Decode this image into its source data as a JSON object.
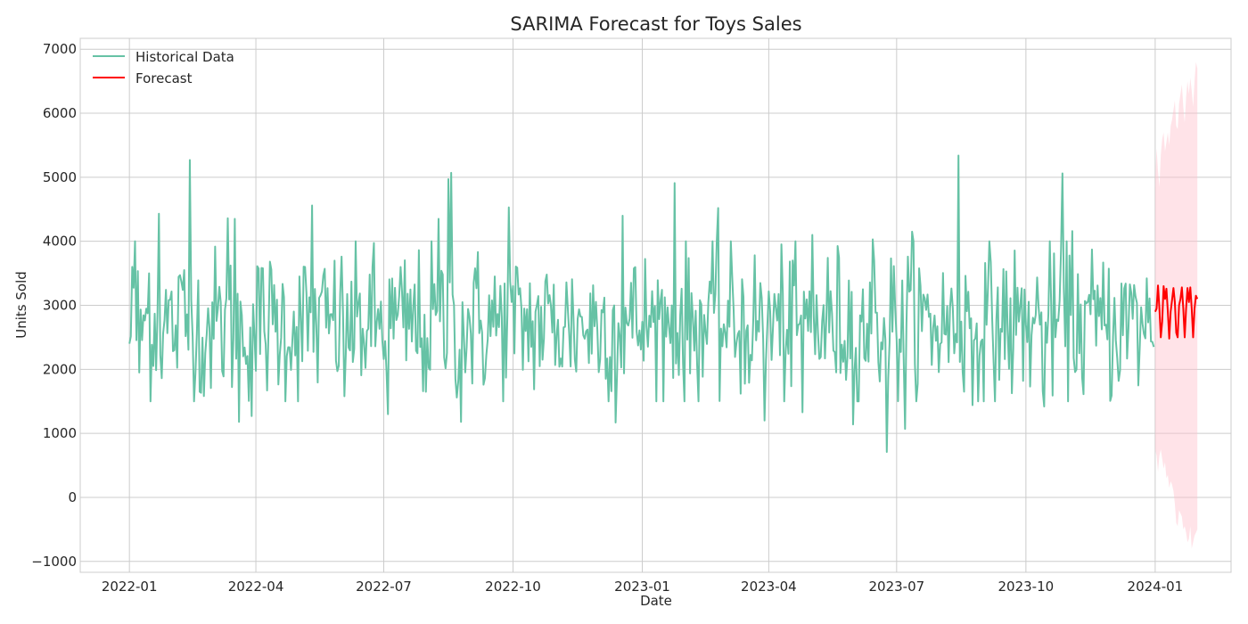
{
  "chart_data": {
    "type": "line",
    "title": "SARIMA Forecast for Toys Sales",
    "xlabel": "Date",
    "ylabel": "Units Sold",
    "xlim": [
      "2021-11-27",
      "2024-02-24"
    ],
    "ylim": [
      -1170,
      7170
    ],
    "y_ticks": [
      -1000,
      0,
      1000,
      2000,
      3000,
      4000,
      5000,
      6000,
      7000
    ],
    "y_tick_labels": [
      "−1000",
      "0",
      "1000",
      "2000",
      "3000",
      "4000",
      "5000",
      "6000",
      "7000"
    ],
    "x_ticks": [
      "2022-01-01",
      "2022-04-01",
      "2022-07-01",
      "2022-10-01",
      "2023-01-01",
      "2023-04-01",
      "2023-07-01",
      "2023-10-01",
      "2024-01-01"
    ],
    "x_tick_labels": [
      "2022-01",
      "2022-04",
      "2022-07",
      "2022-10",
      "2023-01",
      "2023-04",
      "2023-07",
      "2023-10",
      "2024-01"
    ],
    "grid": true,
    "legend_position": "top-left",
    "colors": {
      "historical": "#66c2a5",
      "forecast": "#ff0000",
      "band": "#ffc0cb"
    },
    "historical": {
      "name": "Historical Data",
      "start": "2022-01-01",
      "end": "2023-12-31",
      "anchors": [
        [
          "2022-01-01",
          2400
        ],
        [
          "2022-01-03",
          3600
        ],
        [
          "2022-01-05",
          4000
        ],
        [
          "2022-01-08",
          1950
        ],
        [
          "2022-01-15",
          3500
        ],
        [
          "2022-01-22",
          4430
        ],
        [
          "2022-02-02",
          2300
        ],
        [
          "2022-02-09",
          3550
        ],
        [
          "2022-02-13",
          5270
        ],
        [
          "2022-02-20",
          1650
        ],
        [
          "2022-03-12",
          4360
        ],
        [
          "2022-03-17",
          4350
        ],
        [
          "2022-03-20",
          1180
        ],
        [
          "2022-03-29",
          1270
        ],
        [
          "2022-05-11",
          4560
        ],
        [
          "2022-06-03",
          1580
        ],
        [
          "2022-07-04",
          1300
        ],
        [
          "2022-07-31",
          1650
        ],
        [
          "2022-08-09",
          4350
        ],
        [
          "2022-08-16",
          4970
        ],
        [
          "2022-08-18",
          5070
        ],
        [
          "2022-08-25",
          1180
        ],
        [
          "2022-09-28",
          4530
        ],
        [
          "2022-12-13",
          1170
        ],
        [
          "2022-12-18",
          4400
        ],
        [
          "2023-01-24",
          4910
        ],
        [
          "2023-02-24",
          4520
        ],
        [
          "2023-03-29",
          1200
        ],
        [
          "2023-04-25",
          1330
        ],
        [
          "2023-05-02",
          4100
        ],
        [
          "2023-05-31",
          1140
        ],
        [
          "2023-06-14",
          4030
        ],
        [
          "2023-06-24",
          710
        ],
        [
          "2023-07-07",
          1070
        ],
        [
          "2023-07-12",
          4150
        ],
        [
          "2023-08-14",
          5340
        ],
        [
          "2023-08-24",
          1440
        ],
        [
          "2023-10-14",
          1420
        ],
        [
          "2023-10-27",
          5060
        ],
        [
          "2023-11-03",
          4160
        ],
        [
          "2023-12-31",
          2350
        ]
      ]
    },
    "forecast": {
      "name": "Forecast",
      "dates": [
        "2024-01-01",
        "2024-01-02",
        "2024-01-03",
        "2024-01-04",
        "2024-01-05",
        "2024-01-06",
        "2024-01-07",
        "2024-01-08",
        "2024-01-09",
        "2024-01-10",
        "2024-01-11",
        "2024-01-12",
        "2024-01-13",
        "2024-01-14",
        "2024-01-15",
        "2024-01-16",
        "2024-01-17",
        "2024-01-18",
        "2024-01-19",
        "2024-01-20",
        "2024-01-21",
        "2024-01-22",
        "2024-01-23",
        "2024-01-24",
        "2024-01-25",
        "2024-01-26",
        "2024-01-27",
        "2024-01-28",
        "2024-01-29",
        "2024-01-30",
        "2024-01-31"
      ],
      "values": [
        2900,
        2950,
        3310,
        2950,
        2500,
        2750,
        3300,
        3100,
        3260,
        2900,
        2480,
        2900,
        3080,
        3270,
        3050,
        2570,
        2500,
        3000,
        3100,
        3280,
        2950,
        2500,
        2950,
        3270,
        3050,
        3280,
        2950,
        2500,
        2950,
        3150,
        3100
      ],
      "lower": [
        750,
        650,
        400,
        650,
        750,
        600,
        450,
        550,
        300,
        350,
        150,
        250,
        200,
        100,
        -100,
        -400,
        -450,
        -200,
        -250,
        -300,
        -500,
        -450,
        -550,
        -700,
        -650,
        -450,
        -800,
        -700,
        -600,
        -550,
        -500
      ],
      "upper": [
        5000,
        5450,
        5100,
        4850,
        5350,
        5600,
        5700,
        5400,
        5550,
        5700,
        5500,
        5800,
        5900,
        6050,
        6200,
        5800,
        5750,
        6150,
        6300,
        6450,
        6100,
        5850,
        6250,
        6500,
        6300,
        6550,
        6350,
        6100,
        6500,
        6800,
        6700
      ]
    }
  }
}
